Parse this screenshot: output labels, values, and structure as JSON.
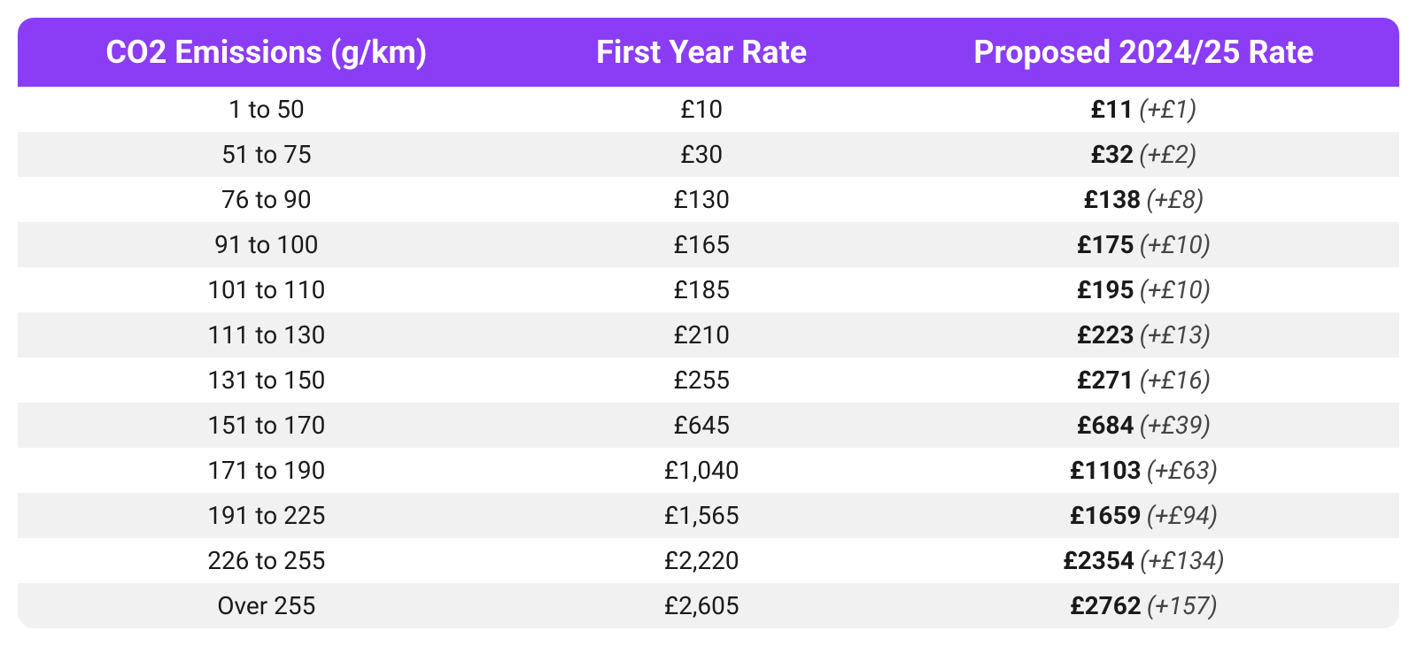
{
  "table": {
    "type": "table",
    "header_bg": "#8a3df5",
    "header_fg": "#ffffff",
    "row_odd_bg": "#ffffff",
    "row_even_bg": "#f1f1f1",
    "header_fontsize": 36,
    "cell_fontsize": 28,
    "border_radius": 18,
    "columns": [
      {
        "label": "CO2 Emissions (g/km)",
        "width_pct": 36,
        "align": "center"
      },
      {
        "label": "First Year Rate",
        "width_pct": 27,
        "align": "center"
      },
      {
        "label": "Proposed 2024/25 Rate",
        "width_pct": 37,
        "align": "center"
      }
    ],
    "rows": [
      {
        "emissions": "1 to 50",
        "first_year": "£10",
        "proposed": "£11",
        "delta": "(+£1)"
      },
      {
        "emissions": "51 to 75",
        "first_year": "£30",
        "proposed": "£32",
        "delta": "(+£2)"
      },
      {
        "emissions": "76 to 90",
        "first_year": "£130",
        "proposed": "£138",
        "delta": "(+£8)"
      },
      {
        "emissions": "91 to 100",
        "first_year": "£165",
        "proposed": "£175",
        "delta": "(+£10)"
      },
      {
        "emissions": "101 to 110",
        "first_year": "£185",
        "proposed": "£195",
        "delta": "(+£10)"
      },
      {
        "emissions": "111 to 130",
        "first_year": "£210",
        "proposed": "£223",
        "delta": "(+£13)"
      },
      {
        "emissions": "131 to 150",
        "first_year": "£255",
        "proposed": "£271",
        "delta": "(+£16)"
      },
      {
        "emissions": "151 to 170",
        "first_year": "£645",
        "proposed": "£684",
        "delta": "(+£39)"
      },
      {
        "emissions": "171 to 190",
        "first_year": "£1,040",
        "proposed": "£1103",
        "delta": "(+£63)"
      },
      {
        "emissions": "191 to 225",
        "first_year": "£1,565",
        "proposed": "£1659",
        "delta": "(+£94)"
      },
      {
        "emissions": "226 to 255",
        "first_year": "£2,220",
        "proposed": "£2354",
        "delta": "(+£134)"
      },
      {
        "emissions": "Over 255",
        "first_year": "£2,605",
        "proposed": "£2762",
        "delta": "(+157)"
      }
    ]
  }
}
